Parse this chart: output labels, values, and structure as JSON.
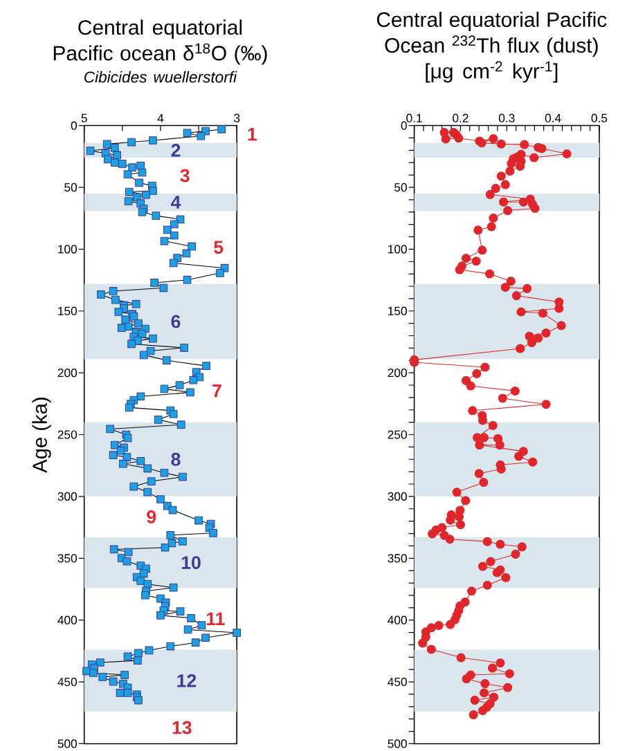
{
  "chart_data": [
    {
      "type": "line",
      "title": "Central equatorial Pacific ocean δ$^{18}$O (‰)",
      "subtitle": "Cibicides wuellerstorfi",
      "ylabel": "Age (ka)",
      "marker": "square",
      "color": "#1ba1e2",
      "x": [
        3.2,
        3.41,
        3.65,
        3.47,
        4.1,
        4.38,
        4.7,
        4.6,
        4.92,
        4.72,
        4.57,
        4.69,
        4.6,
        4.5,
        4.37,
        4.26,
        4.24,
        4.43,
        4.28,
        4.11,
        4.1,
        4.41,
        4.19,
        4.31,
        4.42,
        4.26,
        4.22,
        4.24,
        4.06,
        3.74,
        3.82,
        3.91,
        3.82,
        3.95,
        3.59,
        3.66,
        3.78,
        3.83,
        3.16,
        3.22,
        3.65,
        4.08,
        3.96,
        4.62,
        4.78,
        4.59,
        4.32,
        4.48,
        4.48,
        4.55,
        4.37,
        4.35,
        4.46,
        4.29,
        4.42,
        4.51,
        4.2,
        4.32,
        4.24,
        4.35,
        4.1,
        4.3,
        4.38,
        3.69,
        4.13,
        4.22,
        3.92,
        3.4,
        3.53,
        3.49,
        3.57,
        3.75,
        3.95,
        3.61,
        4.26,
        4.35,
        4.39,
        4.41,
        3.87,
        3.83,
        4.03,
        3.73,
        4.66,
        4.45,
        4.43,
        4.6,
        4.48,
        4.52,
        4.62,
        4.44,
        4.26,
        4.49,
        4.17,
        3.95,
        3.71,
        4.12,
        4.35,
        4.17,
        4.0,
        3.91,
        3.84,
        3.5,
        3.34,
        3.36,
        3.31,
        3.87,
        3.71,
        3.85,
        3.94,
        4.61,
        4.42,
        4.51,
        4.44,
        4.26,
        4.19,
        4.22,
        4.31,
        4.26,
        4.17,
        3.83,
        4.19,
        4.2,
        4.0,
        3.93,
        3.94,
        3.96,
        3.74,
        4.0,
        3.6,
        3.46,
        3.64,
        3.0,
        3.41,
        3.54,
        3.87,
        4.15,
        4.29,
        4.43,
        4.3,
        4.79,
        4.9,
        4.87,
        4.97,
        4.88,
        4.47,
        4.76,
        4.62,
        4.49,
        4.43,
        4.53,
        4.43,
        4.31,
        4.31,
        4.29
      ],
      "values": [
        3,
        4.5,
        6,
        8.5,
        12,
        13.4,
        15,
        18,
        20.5,
        22.3,
        24,
        27.3,
        30,
        30.9,
        33.9,
        32.4,
        38,
        39.4,
        46.3,
        48.7,
        52.8,
        53.7,
        56,
        58,
        61.2,
        63,
        67.3,
        69.9,
        72.9,
        75.9,
        79.8,
        84.4,
        88.9,
        93.4,
        97.8,
        103.4,
        107.1,
        111.2,
        115.3,
        119.3,
        124.8,
        127.2,
        131.3,
        133.9,
        136.7,
        141,
        144.4,
        145.5,
        148,
        150.7,
        152.5,
        154.4,
        157,
        160,
        162.6,
        163.7,
        164.4,
        167.2,
        168.5,
        170.9,
        172.3,
        174.1,
        176.7,
        179.7,
        182.3,
        185.6,
        189.9,
        194.4,
        199.4,
        203.5,
        205.9,
        210,
        213,
        215.8,
        219.1,
        222.1,
        225.1,
        228.1,
        230.5,
        233.3,
        237.9,
        242,
        245.5,
        250,
        252.8,
        258.4,
        260.6,
        263,
        266.6,
        268.2,
        271.4,
        273.6,
        277.3,
        280.9,
        284.2,
        287.8,
        292,
        296.5,
        302.3,
        307.7,
        311,
        319.4,
        322.2,
        325.3,
        329.6,
        331.3,
        336.3,
        337.8,
        341.3,
        342.8,
        345,
        349.9,
        352.5,
        356,
        358.4,
        362.3,
        365.3,
        368.3,
        370.9,
        373.7,
        376.5,
        379.9,
        382.6,
        385.8,
        388.9,
        392.3,
        393,
        396.2,
        398.4,
        404.2,
        407.7,
        410.3,
        414.3,
        418.2,
        421.2,
        424.5,
        426.7,
        429.5,
        432.7,
        434.3,
        436,
        439,
        441.2,
        442.7,
        444.4,
        446,
        449.8,
        451.5,
        454.6,
        458.9,
        458.9,
        460.2,
        462.4,
        464.8
      ],
      "xlim": [
        5,
        3
      ],
      "xticks": [
        5,
        {
          "value": 4.5,
          "label": null
        },
        4,
        {
          "value": 3.5,
          "label": null
        },
        3
      ],
      "ylim": [
        500,
        0
      ],
      "yticks": [
        0,
        50,
        100,
        150,
        200,
        250,
        300,
        350,
        400,
        450,
        500
      ],
      "bands": [
        {
          "axis": "y",
          "from": 14,
          "to": 26,
          "color": "#dae6ed"
        },
        {
          "axis": "y",
          "from": 55,
          "to": 69,
          "color": "#dae6ed"
        },
        {
          "axis": "y",
          "from": 128,
          "to": 189,
          "color": "#dae6ed"
        },
        {
          "axis": "y",
          "from": 240,
          "to": 300,
          "color": "#dae6ed"
        },
        {
          "axis": "y",
          "from": 333,
          "to": 374,
          "color": "#dae6ed"
        },
        {
          "axis": "y",
          "from": 424,
          "to": 474,
          "color": "#dae6ed"
        }
      ],
      "annotations": [
        "1",
        "2",
        "3",
        "4",
        "5",
        "6",
        "7",
        "8",
        "9",
        "10",
        "11",
        "12",
        "13"
      ]
    },
    {
      "type": "line",
      "title": "Central equatorial Pacific Ocean $^{232}$Th flux (dust)",
      "subtitle": "[μg cm$^{-2}$ kyr$^{-1}$]",
      "marker": "circle",
      "color": "#e0262b",
      "x": [
        0.165,
        0.185,
        0.191,
        0.168,
        0.196,
        0.241,
        0.271,
        0.246,
        0.288,
        0.338,
        0.368,
        0.376,
        0.43,
        0.359,
        0.331,
        0.322,
        0.314,
        0.331,
        0.31,
        0.329,
        0.307,
        0.288,
        0.297,
        0.276,
        0.264,
        0.351,
        0.293,
        0.336,
        0.356,
        0.361,
        0.302,
        0.271,
        0.267,
        0.238,
        0.247,
        0.212,
        0.234,
        0.203,
        0.198,
        0.263,
        0.309,
        0.297,
        0.344,
        0.321,
        0.413,
        0.413,
        0.331,
        0.378,
        0.418,
        0.385,
        0.349,
        0.368,
        0.354,
        0.329,
        0.1,
        0.1,
        0.253,
        0.235,
        0.212,
        0.222,
        0.318,
        0.291,
        0.385,
        0.226,
        0.247,
        0.248,
        0.27,
        0.236,
        0.251,
        0.281,
        0.285,
        0.241,
        0.336,
        0.326,
        0.356,
        0.286,
        0.288,
        0.24,
        0.25,
        0.192,
        0.211,
        0.199,
        0.18,
        0.197,
        0.178,
        0.2,
        0.16,
        0.147,
        0.139,
        0.165,
        0.177,
        0.258,
        0.286,
        0.333,
        0.319,
        0.265,
        0.248,
        0.286,
        0.279,
        0.298,
        0.258,
        0.224,
        0.21,
        0.199,
        0.196,
        0.192,
        0.188,
        0.178,
        0.153,
        0.137,
        0.125,
        0.125,
        0.118,
        0.137,
        0.201,
        0.286,
        0.269,
        0.306,
        0.222,
        0.213,
        0.253,
        0.302,
        0.251,
        0.272,
        0.231,
        0.264,
        0.257,
        0.248,
        0.228
      ],
      "values": [
        5.6,
        5.6,
        7.4,
        10.8,
        10.2,
        12.6,
        10.6,
        14,
        14.9,
        15.4,
        17.7,
        18.6,
        22.9,
        26,
        23.3,
        25.5,
        27,
        28.8,
        30.7,
        32.9,
        36.8,
        40.9,
        47.8,
        50.8,
        55.8,
        59.5,
        61.8,
        61.9,
        63.8,
        67,
        68.8,
        74.8,
        81.8,
        84.6,
        100.8,
        107.3,
        109.7,
        113.7,
        116.6,
        120,
        125.9,
        130.8,
        131.9,
        137.6,
        142.7,
        147.9,
        150.7,
        151.8,
        161.8,
        167.8,
        170.4,
        171.9,
        175.6,
        180.4,
        189.5,
        191.5,
        195.5,
        200.7,
        206.3,
        210.6,
        214.7,
        220.6,
        225.5,
        230.6,
        234.6,
        238.5,
        242.6,
        252.4,
        252.4,
        253.2,
        258.4,
        258.4,
        263.5,
        267.5,
        272.2,
        274.5,
        277.8,
        281.5,
        288.6,
        296.6,
        303.4,
        311.2,
        314.9,
        316.4,
        319.2,
        322.8,
        325.2,
        327.1,
        330.2,
        331.5,
        334.6,
        336.5,
        338.7,
        340.8,
        346.7,
        352.7,
        356.6,
        359.4,
        361.6,
        365.7,
        371.8,
        376.6,
        385.4,
        388.5,
        392.3,
        396,
        399.7,
        403.6,
        404.4,
        406.2,
        409.6,
        413.7,
        418.7,
        423.7,
        430.4,
        434.7,
        438.8,
        443.4,
        444.4,
        447.5,
        451.4,
        454.6,
        458.9,
        462.4,
        464.8,
        467.6,
        470.4,
        473.2,
        476.6
      ],
      "xlim": [
        0.1,
        0.5
      ],
      "xticks": [
        0.1,
        {
          "value": 0.12,
          "label": null
        },
        {
          "value": 0.14,
          "label": null
        },
        {
          "value": 0.16,
          "label": null
        },
        {
          "value": 0.18,
          "label": null
        },
        0.2,
        {
          "value": 0.22,
          "label": null
        },
        {
          "value": 0.24,
          "label": null
        },
        {
          "value": 0.26,
          "label": null
        },
        {
          "value": 0.28,
          "label": null
        },
        0.3,
        {
          "value": 0.32,
          "label": null
        },
        {
          "value": 0.34,
          "label": null
        },
        {
          "value": 0.36,
          "label": null
        },
        {
          "value": 0.38,
          "label": null
        },
        0.4,
        {
          "value": 0.42,
          "label": null
        },
        {
          "value": 0.44,
          "label": null
        },
        {
          "value": 0.46,
          "label": null
        },
        {
          "value": 0.48,
          "label": null
        },
        0.5
      ],
      "ylim": [
        500,
        0
      ],
      "yticks": [
        0,
        {
          "value": 10,
          "label": null
        },
        {
          "value": 20,
          "label": null
        },
        {
          "value": 30,
          "label": null
        },
        {
          "value": 40,
          "label": null
        },
        50,
        {
          "value": 60,
          "label": null
        },
        {
          "value": 70,
          "label": null
        },
        {
          "value": 80,
          "label": null
        },
        {
          "value": 90,
          "label": null
        },
        100,
        {
          "value": 110,
          "label": null
        },
        {
          "value": 120,
          "label": null
        },
        {
          "value": 130,
          "label": null
        },
        {
          "value": 140,
          "label": null
        },
        150,
        {
          "value": 160,
          "label": null
        },
        {
          "value": 170,
          "label": null
        },
        {
          "value": 180,
          "label": null
        },
        {
          "value": 190,
          "label": null
        },
        200,
        {
          "value": 210,
          "label": null
        },
        {
          "value": 220,
          "label": null
        },
        {
          "value": 230,
          "label": null
        },
        {
          "value": 240,
          "label": null
        },
        250,
        {
          "value": 260,
          "label": null
        },
        {
          "value": 270,
          "label": null
        },
        {
          "value": 280,
          "label": null
        },
        {
          "value": 290,
          "label": null
        },
        300,
        {
          "value": 310,
          "label": null
        },
        {
          "value": 320,
          "label": null
        },
        {
          "value": 330,
          "label": null
        },
        {
          "value": 340,
          "label": null
        },
        350,
        {
          "value": 360,
          "label": null
        },
        {
          "value": 370,
          "label": null
        },
        {
          "value": 380,
          "label": null
        },
        {
          "value": 390,
          "label": null
        },
        400,
        {
          "value": 410,
          "label": null
        },
        {
          "value": 420,
          "label": null
        },
        {
          "value": 430,
          "label": null
        },
        {
          "value": 440,
          "label": null
        },
        450,
        {
          "value": 460,
          "label": null
        },
        {
          "value": 470,
          "label": null
        },
        {
          "value": 480,
          "label": null
        },
        {
          "value": 490,
          "label": null
        },
        500
      ],
      "bands": [
        {
          "axis": "y",
          "from": 14,
          "to": 26,
          "color": "#dae6ed"
        },
        {
          "axis": "y",
          "from": 55,
          "to": 69,
          "color": "#dae6ed"
        },
        {
          "axis": "y",
          "from": 128,
          "to": 189,
          "color": "#dae6ed"
        },
        {
          "axis": "y",
          "from": 240,
          "to": 300,
          "color": "#dae6ed"
        },
        {
          "axis": "y",
          "from": 333,
          "to": 374,
          "color": "#dae6ed"
        },
        {
          "axis": "y",
          "from": 424,
          "to": 474,
          "color": "#dae6ed"
        }
      ]
    }
  ]
}
